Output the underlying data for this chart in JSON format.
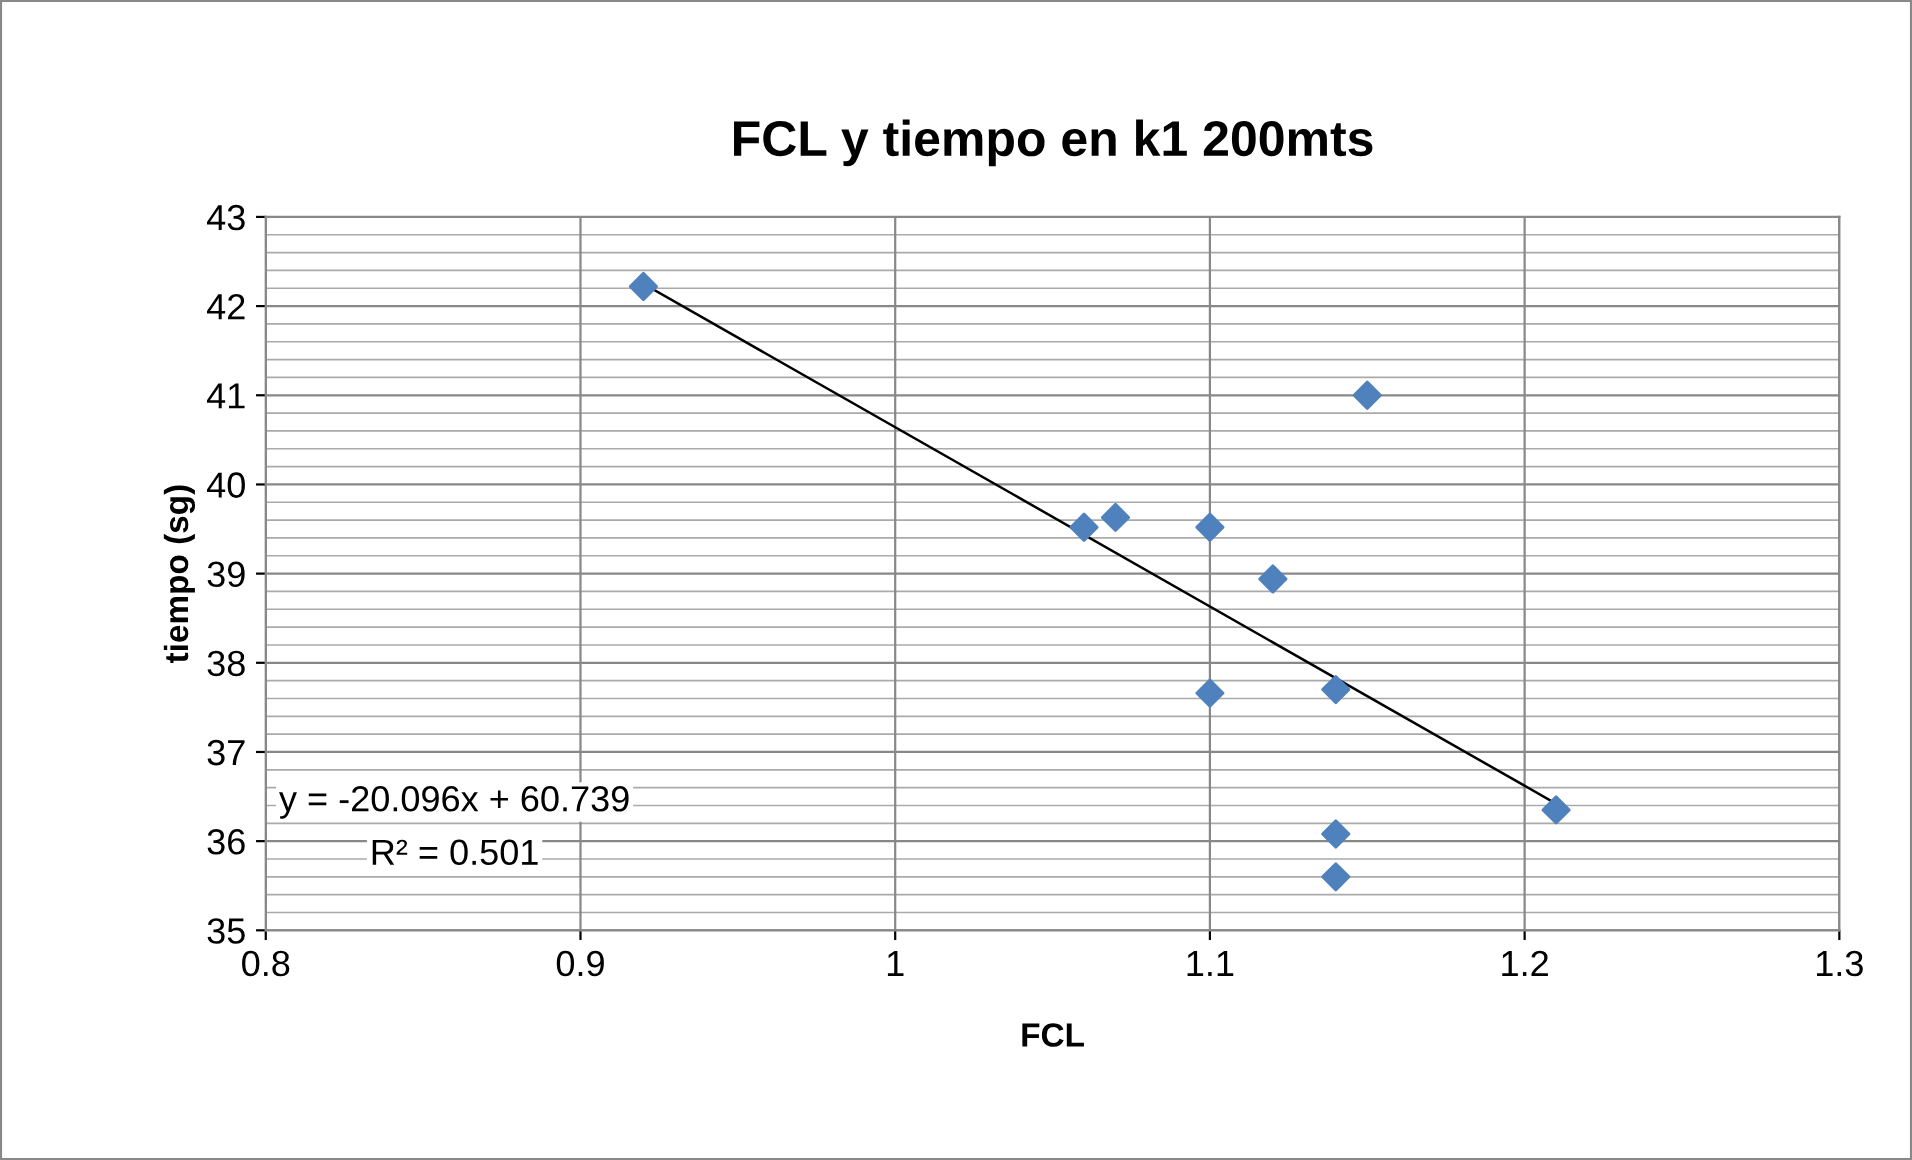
{
  "chart_data": {
    "type": "scatter",
    "title": "FCL y tiempo en k1 200mts",
    "xlabel": "FCL",
    "ylabel": "tiempo (sg)",
    "xlim": [
      0.8,
      1.3
    ],
    "xticks": [
      0.8,
      0.9,
      {
        "value": 1,
        "label": "1"
      },
      1.1,
      1.2,
      1.3
    ],
    "ylim": [
      35,
      43
    ],
    "yticks": [
      35,
      36,
      37,
      38,
      39,
      40,
      41,
      42,
      43
    ],
    "grid": true,
    "series": [
      {
        "color": "#4f81bd",
        "marker": "diamond",
        "x": [
          0.92,
          1.15,
          1.06,
          1.07,
          1.1,
          1.12,
          1.1,
          1.14,
          1.21,
          1.14,
          1.14
        ],
        "values": [
          42.22,
          41.0,
          39.52,
          39.63,
          39.52,
          38.94,
          37.66,
          37.7,
          36.35,
          36.08,
          35.6
        ]
      },
      {
        "type": "line",
        "color": "#000000",
        "marker": "none",
        "x": [
          0.92,
          1.21
        ],
        "values": [
          42.25,
          36.42
        ]
      }
    ],
    "annotations": [
      "y = -20.096x + 60.739",
      "R² = 0.501"
    ]
  }
}
